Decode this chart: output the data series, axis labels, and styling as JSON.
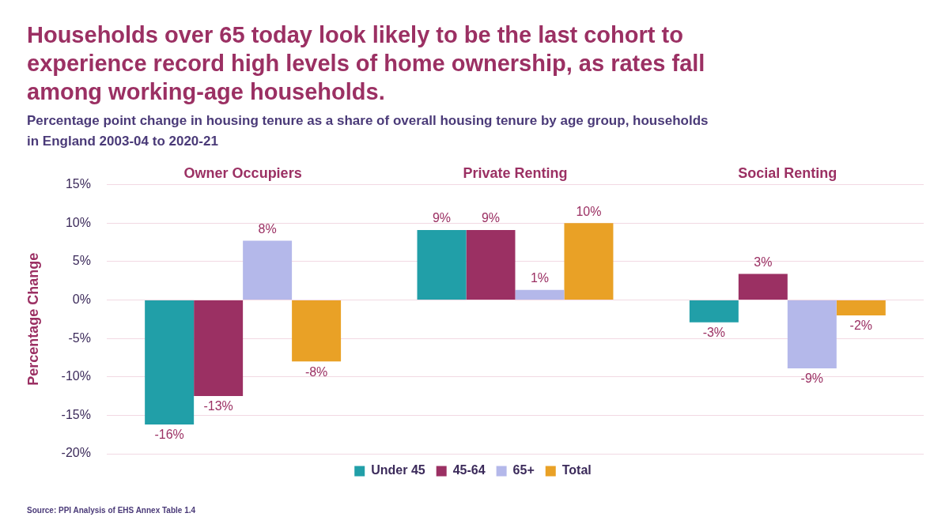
{
  "chart_data": {
    "type": "bar",
    "title": "Households over 65 today look likely to be the last cohort to experience record high levels of home ownership, as rates fall among working-age households.",
    "subtitle": "Percentage point change in housing tenure as a share of overall housing tenure by age group, households in England 2003-04 to 2020-21",
    "ylabel": "Percentage Change",
    "categories": [
      "Owner Occupiers",
      "Private Renting",
      "Social Renting"
    ],
    "series": [
      {
        "name": "Under 45",
        "color": "#219fa8",
        "values": [
          -16.2,
          9.1,
          -2.9
        ],
        "value_labels": [
          "-16%",
          "9%",
          "-3%"
        ]
      },
      {
        "name": "45-64",
        "color": "#9b3063",
        "values": [
          -12.5,
          9.1,
          3.4
        ],
        "value_labels": [
          "-13%",
          "9%",
          "3%"
        ]
      },
      {
        "name": "65+",
        "color": "#b4b8ea",
        "values": [
          7.7,
          1.3,
          -8.9
        ],
        "value_labels": [
          "8%",
          "1%",
          "-9%"
        ]
      },
      {
        "name": "Total",
        "color": "#e9a126",
        "values": [
          -8.0,
          10.0,
          -2.0
        ],
        "value_labels": [
          "-8%",
          "10%",
          "-2%"
        ]
      }
    ],
    "ylim": [
      -20,
      15
    ],
    "yticks": [
      {
        "value": -20,
        "label": "-20%"
      },
      {
        "value": -15,
        "label": "-15%"
      },
      {
        "value": -10,
        "label": "-10%"
      },
      {
        "value": -5,
        "label": "-5%"
      },
      {
        "value": 0,
        "label": "0%"
      },
      {
        "value": 5,
        "label": "5%"
      },
      {
        "value": 10,
        "label": "10%"
      },
      {
        "value": 15,
        "label": "15%"
      }
    ],
    "grid": "y",
    "legend": "bottom",
    "annotations": [
      "Source: PPI Analysis of EHS Annex Table 1.4"
    ]
  }
}
